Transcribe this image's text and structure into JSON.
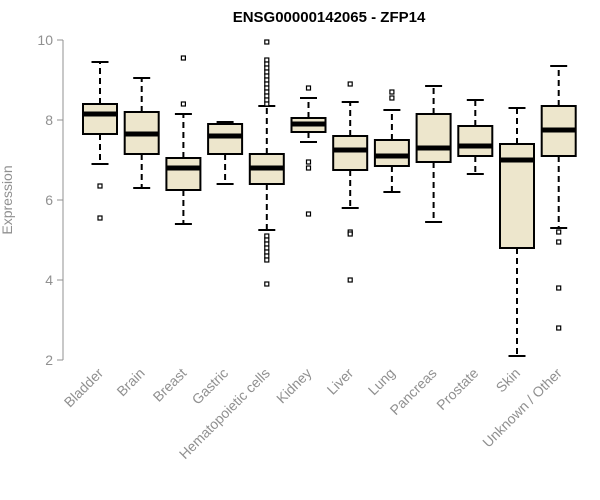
{
  "chart_data": {
    "type": "boxplot",
    "title": "ENSG00000142065 - ZFP14",
    "ylabel": "Expression",
    "ylim": [
      2,
      10
    ],
    "yticks": [
      2,
      4,
      6,
      8,
      10
    ],
    "box_fill": "#ede6cc",
    "categories": [
      "Bladder",
      "Brain",
      "Breast",
      "Gastric",
      "Hematopoietic cells",
      "Kidney",
      "Liver",
      "Lung",
      "Pancreas",
      "Prostate",
      "Skin",
      "Unknown / Other"
    ],
    "boxes": [
      {
        "min": 6.9,
        "q1": 7.65,
        "median": 8.15,
        "q3": 8.4,
        "max": 9.45,
        "outliers": [
          6.35,
          5.55
        ]
      },
      {
        "min": 6.3,
        "q1": 7.15,
        "median": 7.65,
        "q3": 8.2,
        "max": 9.05,
        "outliers": []
      },
      {
        "min": 5.4,
        "q1": 6.25,
        "median": 6.8,
        "q3": 7.05,
        "max": 8.15,
        "outliers": [
          9.55,
          8.4
        ]
      },
      {
        "min": 6.4,
        "q1": 7.15,
        "median": 7.6,
        "q3": 7.9,
        "max": 7.95,
        "outliers": []
      },
      {
        "min": 5.25,
        "q1": 6.4,
        "median": 6.8,
        "q3": 7.15,
        "max": 8.35,
        "outliers": [
          9.95,
          9.5,
          9.4,
          9.3,
          9.2,
          9.1,
          9.0,
          8.9,
          8.8,
          8.7,
          8.6,
          8.5,
          8.4,
          5.1,
          5.0,
          4.9,
          4.8,
          4.7,
          4.6,
          4.5,
          3.9
        ]
      },
      {
        "min": 7.45,
        "q1": 7.7,
        "median": 7.9,
        "q3": 8.05,
        "max": 8.55,
        "outliers": [
          8.8,
          6.95,
          6.8,
          5.65
        ]
      },
      {
        "min": 5.8,
        "q1": 6.75,
        "median": 7.25,
        "q3": 7.6,
        "max": 8.45,
        "outliers": [
          8.9,
          5.2,
          5.15,
          4.0
        ]
      },
      {
        "min": 6.2,
        "q1": 6.85,
        "median": 7.1,
        "q3": 7.5,
        "max": 8.25,
        "outliers": [
          8.7,
          8.55
        ]
      },
      {
        "min": 5.45,
        "q1": 6.95,
        "median": 7.3,
        "q3": 8.15,
        "max": 8.85,
        "outliers": []
      },
      {
        "min": 6.65,
        "q1": 7.1,
        "median": 7.35,
        "q3": 7.85,
        "max": 8.5,
        "outliers": []
      },
      {
        "min": 2.1,
        "q1": 4.8,
        "median": 7.0,
        "q3": 7.4,
        "max": 8.3,
        "outliers": []
      },
      {
        "min": 5.3,
        "q1": 7.1,
        "median": 7.75,
        "q3": 8.35,
        "max": 9.35,
        "outliers": [
          5.2,
          4.95,
          3.8,
          2.8
        ]
      }
    ]
  }
}
